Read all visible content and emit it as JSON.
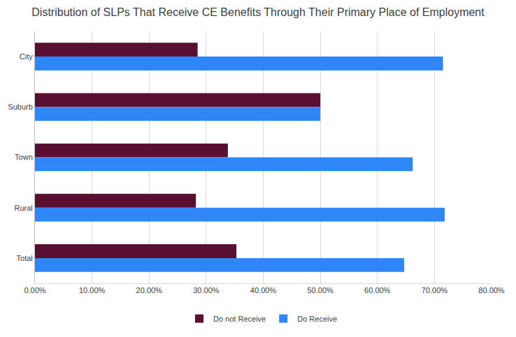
{
  "chart_data": {
    "type": "bar",
    "orientation": "horizontal",
    "title": "Distribution of SLPs That Receive CE Benefits Through Their Primary Place of Employment",
    "categories": [
      "City",
      "Suburb",
      "Town",
      "Rural",
      "Total"
    ],
    "series": [
      {
        "name": "Do not Receive",
        "color": "#5b0f30",
        "values": [
          28.5,
          50.0,
          33.8,
          28.2,
          35.3
        ]
      },
      {
        "name": "Do Receive",
        "color": "#2f86f7",
        "values": [
          71.5,
          50.0,
          66.2,
          71.8,
          64.7
        ]
      }
    ],
    "xlim": [
      0,
      80
    ],
    "xticks": [
      {
        "value": 0,
        "label": "0.00%"
      },
      {
        "value": 10,
        "label": "10.00%"
      },
      {
        "value": 20,
        "label": "20.00%"
      },
      {
        "value": 30,
        "label": "30.00%"
      },
      {
        "value": 40,
        "label": "40.00%"
      },
      {
        "value": 50,
        "label": "50.00%"
      },
      {
        "value": 60,
        "label": "60.00%"
      },
      {
        "value": 70,
        "label": "70.00%"
      },
      {
        "value": 80,
        "label": "80.00%"
      }
    ],
    "grid": true,
    "legend": "bottom"
  }
}
